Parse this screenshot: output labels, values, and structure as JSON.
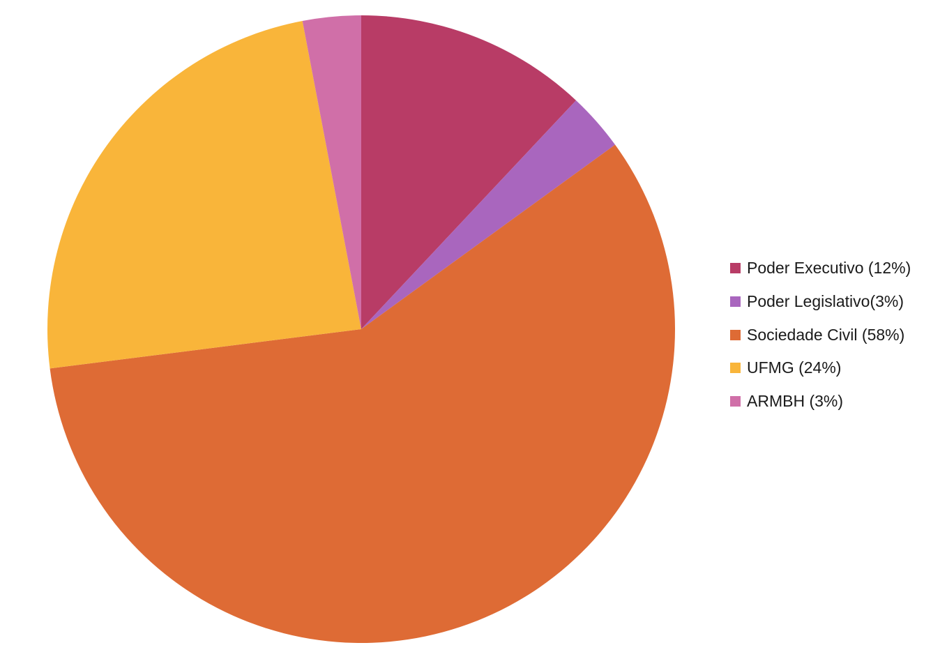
{
  "chart_data": {
    "type": "pie",
    "start_angle": "12 o'clock",
    "direction": "clockwise",
    "legend_position": "right",
    "slices": [
      {
        "label": "Poder Executivo (12%)",
        "value": 12,
        "color": "#B83C66"
      },
      {
        "label": "Poder Legislativo(3%)",
        "value": 3,
        "color": "#A966BE"
      },
      {
        "label": "Sociedade Civil (58%)",
        "value": 58,
        "color": "#DE6B35"
      },
      {
        "label": "UFMG (24%)",
        "value": 24,
        "color": "#F9B53A"
      },
      {
        "label": "ARMBH (3%)",
        "value": 3,
        "color": "#D06FA8"
      }
    ]
  }
}
